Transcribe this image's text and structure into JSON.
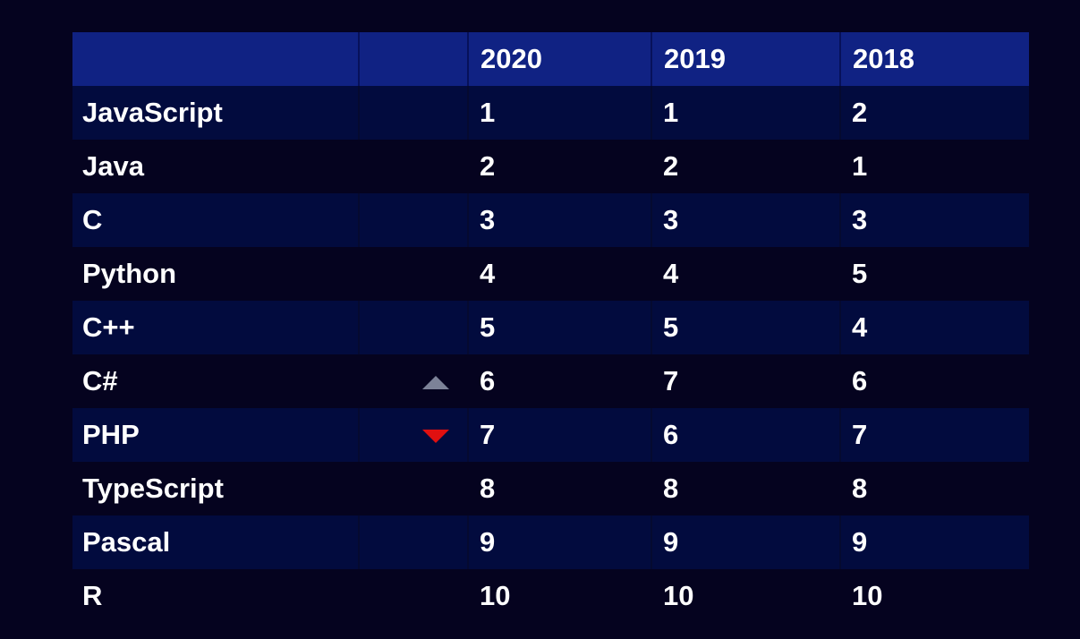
{
  "chart_data": {
    "type": "table",
    "columns": [
      "",
      "",
      "2020",
      "2019",
      "2018"
    ],
    "rows": [
      {
        "language": "JavaScript",
        "trend": "",
        "values": [
          "1",
          "1",
          "2"
        ]
      },
      {
        "language": "Java",
        "trend": "",
        "values": [
          "2",
          "2",
          "1"
        ]
      },
      {
        "language": "C",
        "trend": "",
        "values": [
          "3",
          "3",
          "3"
        ]
      },
      {
        "language": "Python",
        "trend": "",
        "values": [
          "4",
          "4",
          "5"
        ]
      },
      {
        "language": "C++",
        "trend": "",
        "values": [
          "5",
          "5",
          "4"
        ]
      },
      {
        "language": "C#",
        "trend": "up",
        "values": [
          "6",
          "7",
          "6"
        ]
      },
      {
        "language": "PHP",
        "trend": "down",
        "values": [
          "7",
          "6",
          "7"
        ]
      },
      {
        "language": "TypeScript",
        "trend": "",
        "values": [
          "8",
          "8",
          "8"
        ]
      },
      {
        "language": "Pascal",
        "trend": "",
        "values": [
          "9",
          "9",
          "9"
        ]
      },
      {
        "language": "R",
        "trend": "",
        "values": [
          "10",
          "10",
          "10"
        ]
      }
    ]
  },
  "colors": {
    "background": "#05031f",
    "header_background": "#102283",
    "striped_row": "#020b3e",
    "trend_up": "#7c8298",
    "trend_down": "#e01010"
  },
  "icons": {
    "up": "triangle-up-icon",
    "down": "triangle-down-icon"
  }
}
